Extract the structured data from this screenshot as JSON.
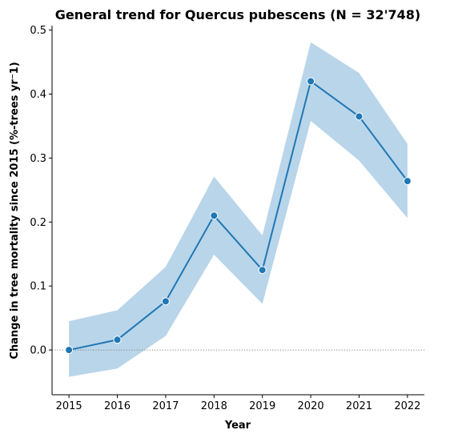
{
  "chart_data": {
    "type": "line",
    "title": "General trend for Quercus pubescens  (N = 32'748)",
    "xlabel": "Year",
    "ylabel": "Change in tree mortality since 2015 (%-trees yr⁻1)",
    "x": [
      2015,
      2016,
      2017,
      2018,
      2019,
      2020,
      2021,
      2022
    ],
    "x_tick_labels": [
      "2015",
      "2016",
      "2017",
      "2018",
      "2019",
      "2020",
      "2021",
      "2022"
    ],
    "series": [
      {
        "values": [
          0.0,
          0.016,
          0.076,
          0.21,
          0.125,
          0.42,
          0.365,
          0.264
        ],
        "ci_lower": [
          -0.042,
          -0.029,
          0.022,
          0.149,
          0.072,
          0.358,
          0.296,
          0.206
        ],
        "ci_upper": [
          0.045,
          0.062,
          0.13,
          0.271,
          0.179,
          0.481,
          0.433,
          0.322
        ],
        "color": "#1f77b4",
        "band_color": "#b9d5ea",
        "marker": "circle"
      }
    ],
    "y_ticks": [
      0.0,
      0.1,
      0.2,
      0.3,
      0.4,
      0.5
    ],
    "y_tick_labels": [
      "0.0",
      "0.1",
      "0.2",
      "0.3",
      "0.4",
      "0.5"
    ],
    "ylim": [
      -0.07,
      0.507
    ],
    "xlim": [
      2014.65,
      2022.35
    ],
    "reference_line": {
      "y": 0,
      "style": "dotted",
      "color": "#808080"
    },
    "grid": false,
    "spines": [
      "left",
      "bottom"
    ]
  }
}
